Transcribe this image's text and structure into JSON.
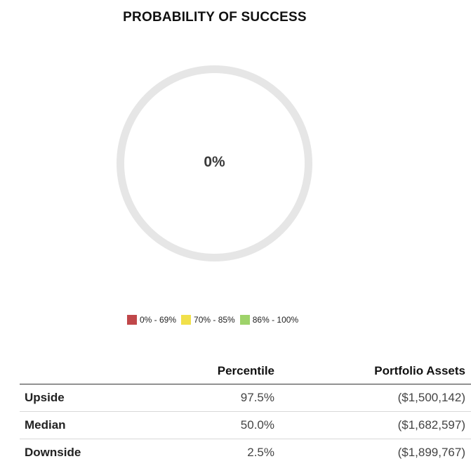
{
  "title": "PROBABILITY OF SUCCESS",
  "gauge": {
    "value_label": "0%",
    "value": 0,
    "track_color": "#e6e6e6"
  },
  "legend": [
    {
      "label": "0% - 69%",
      "color": "#c0474a"
    },
    {
      "label": "70% - 85%",
      "color": "#f1e04a"
    },
    {
      "label": "86% - 100%",
      "color": "#9ed36a"
    }
  ],
  "table": {
    "headers": {
      "label": "",
      "percentile": "Percentile",
      "assets": "Portfolio Assets"
    },
    "rows": [
      {
        "label": "Upside",
        "percentile": "97.5%",
        "assets": "($1,500,142)"
      },
      {
        "label": "Median",
        "percentile": "50.0%",
        "assets": "($1,682,597)"
      },
      {
        "label": "Downside",
        "percentile": "2.5%",
        "assets": "($1,899,767)"
      }
    ]
  }
}
